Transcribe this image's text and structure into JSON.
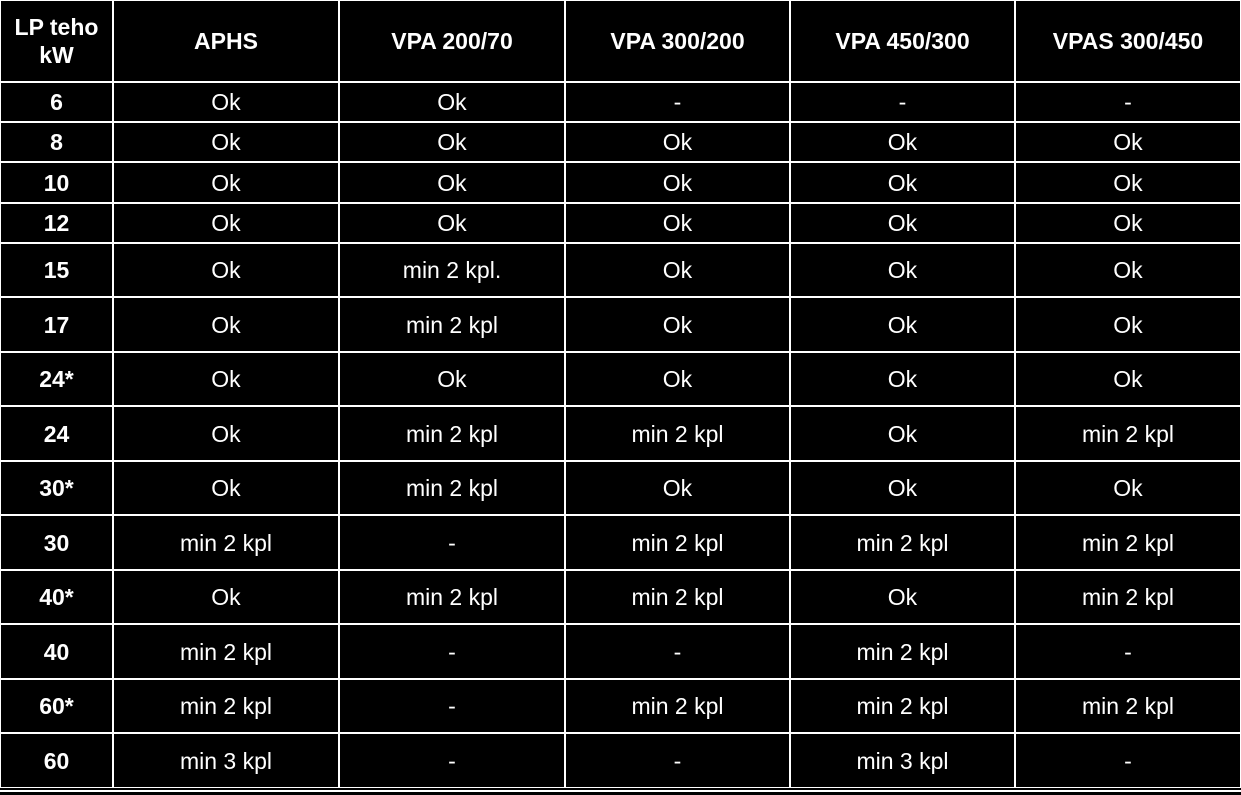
{
  "table": {
    "header": [
      "LP teho kW",
      "APHS",
      "VPA 200/70",
      "VPA 300/200",
      "VPA 450/300",
      "VPAS 300/450"
    ],
    "rows": [
      [
        "6",
        "Ok",
        "Ok",
        "-",
        "-",
        "-"
      ],
      [
        "8",
        "Ok",
        "Ok",
        "Ok",
        "Ok",
        "Ok"
      ],
      [
        "10",
        "Ok",
        "Ok",
        "Ok",
        "Ok",
        "Ok"
      ],
      [
        "12",
        "Ok",
        "Ok",
        "Ok",
        "Ok",
        "Ok"
      ],
      [
        "15",
        "Ok",
        "min 2 kpl.",
        "Ok",
        "Ok",
        "Ok"
      ],
      [
        "17",
        "Ok",
        "min 2 kpl",
        "Ok",
        "Ok",
        "Ok"
      ],
      [
        "24*",
        "Ok",
        "Ok",
        "Ok",
        "Ok",
        "Ok"
      ],
      [
        "24",
        "Ok",
        "min 2 kpl",
        "min 2 kpl",
        "Ok",
        "min 2 kpl"
      ],
      [
        "30*",
        "Ok",
        "min 2 kpl",
        "Ok",
        "Ok",
        "Ok"
      ],
      [
        "30",
        "min 2 kpl",
        "-",
        "min 2 kpl",
        "min 2 kpl",
        "min 2 kpl"
      ],
      [
        "40*",
        "Ok",
        "min 2 kpl",
        "min 2 kpl",
        "Ok",
        "min 2 kpl"
      ],
      [
        "40",
        "min 2 kpl",
        "-",
        "-",
        "min 2 kpl",
        "-"
      ],
      [
        "60*",
        "min 2 kpl",
        "-",
        "min 2 kpl",
        "min 2 kpl",
        "min 2 kpl"
      ],
      [
        "60",
        "min 3 kpl",
        "-",
        "-",
        "min 3 kpl",
        "-"
      ]
    ]
  }
}
